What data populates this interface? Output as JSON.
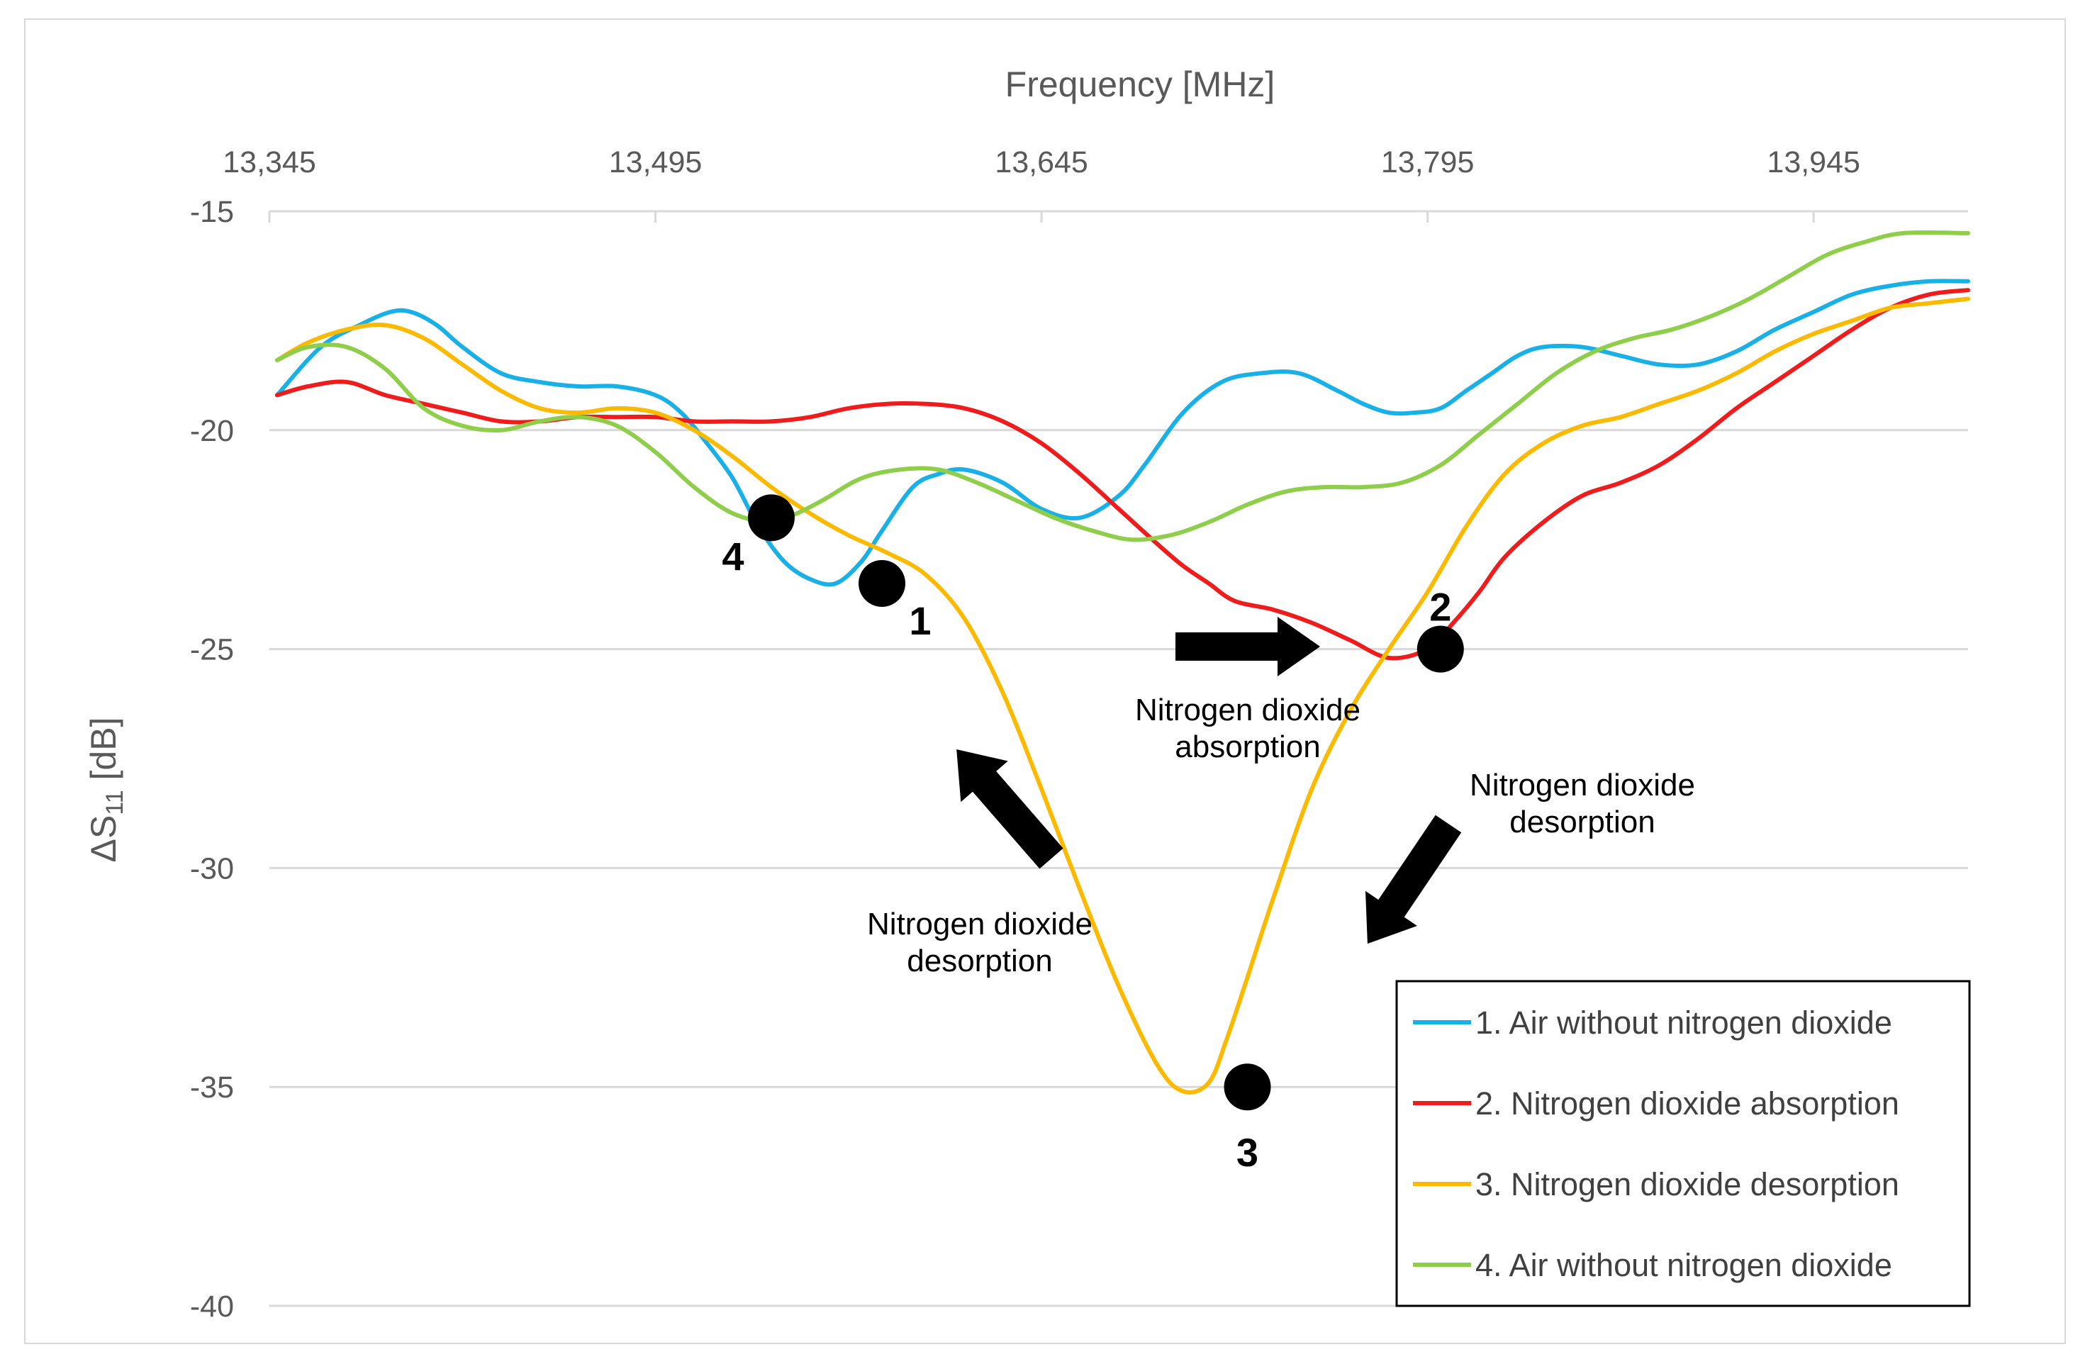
{
  "chart_data": {
    "type": "line",
    "xlabel": "Frequency [MHz]",
    "ylabel_main": "ΔS",
    "ylabel_sub": "11",
    "ylabel_unit": " [dB]",
    "x_axis_position": "top",
    "xlim": [
      13345,
      14005
    ],
    "ylim": [
      -40,
      -15
    ],
    "x_ticks": [
      13345,
      13495,
      13645,
      13795,
      13945
    ],
    "x_tick_labels": [
      "13,345",
      "13,495",
      "13,645",
      "13,795",
      "13,945"
    ],
    "y_ticks": [
      -15,
      -20,
      -25,
      -30,
      -35,
      -40
    ],
    "y_tick_labels": [
      "-15",
      "-20",
      "-25",
      "-30",
      "-35",
      "-40"
    ],
    "grid": true,
    "legend_position": "bottom-right",
    "series": [
      {
        "name": "1. Air without nitrogen dioxide",
        "color": "#19b0e8",
        "x": [
          13348,
          13365,
          13380,
          13392,
          13400,
          13410,
          13420,
          13435,
          13450,
          13465,
          13480,
          13495,
          13505,
          13515,
          13525,
          13535,
          13545,
          13555,
          13565,
          13575,
          13583,
          13595,
          13605,
          13615,
          13630,
          13645,
          13660,
          13675,
          13685,
          13700,
          13715,
          13730,
          13745,
          13760,
          13770,
          13780,
          13790,
          13800,
          13810,
          13820,
          13830,
          13840,
          13855,
          13870,
          13885,
          13900,
          13915,
          13930,
          13945,
          13960,
          13975,
          13990,
          14005
        ],
        "y": [
          -19.2,
          -18.1,
          -17.6,
          -17.3,
          -17.3,
          -17.6,
          -18.1,
          -18.7,
          -18.9,
          -19.0,
          -19.0,
          -19.2,
          -19.6,
          -20.3,
          -21.1,
          -22.2,
          -23.0,
          -23.4,
          -23.5,
          -23.0,
          -22.3,
          -21.3,
          -21.0,
          -20.9,
          -21.2,
          -21.8,
          -22.0,
          -21.5,
          -20.8,
          -19.6,
          -18.9,
          -18.7,
          -18.7,
          -19.1,
          -19.4,
          -19.6,
          -19.6,
          -19.5,
          -19.1,
          -18.7,
          -18.3,
          -18.1,
          -18.1,
          -18.3,
          -18.5,
          -18.5,
          -18.2,
          -17.7,
          -17.3,
          -16.9,
          -16.7,
          -16.6,
          -16.6
        ]
      },
      {
        "name": "2. Nitrogen dioxide absorption",
        "color": "#ee1c1c",
        "x": [
          13348,
          13360,
          13375,
          13390,
          13405,
          13420,
          13435,
          13450,
          13465,
          13480,
          13495,
          13510,
          13525,
          13540,
          13555,
          13570,
          13585,
          13600,
          13615,
          13630,
          13645,
          13660,
          13675,
          13690,
          13700,
          13710,
          13720,
          13735,
          13750,
          13765,
          13780,
          13795,
          13805,
          13815,
          13825,
          13840,
          13855,
          13870,
          13885,
          13900,
          13915,
          13930,
          13945,
          13960,
          13975,
          13990,
          14005
        ],
        "y": [
          -19.2,
          -19.0,
          -18.9,
          -19.2,
          -19.4,
          -19.6,
          -19.8,
          -19.8,
          -19.7,
          -19.7,
          -19.7,
          -19.8,
          -19.8,
          -19.8,
          -19.7,
          -19.5,
          -19.4,
          -19.4,
          -19.5,
          -19.8,
          -20.3,
          -21.0,
          -21.8,
          -22.6,
          -23.1,
          -23.5,
          -23.9,
          -24.1,
          -24.4,
          -24.8,
          -25.2,
          -25.0,
          -24.4,
          -23.7,
          -22.9,
          -22.1,
          -21.5,
          -21.2,
          -20.8,
          -20.2,
          -19.5,
          -18.9,
          -18.3,
          -17.7,
          -17.2,
          -16.9,
          -16.8
        ]
      },
      {
        "name": "3. Nitrogen dioxide desorption",
        "color": "#fbba00",
        "x": [
          13348,
          13360,
          13375,
          13390,
          13405,
          13420,
          13435,
          13450,
          13465,
          13480,
          13495,
          13510,
          13525,
          13540,
          13555,
          13570,
          13585,
          13600,
          13615,
          13630,
          13645,
          13660,
          13675,
          13690,
          13700,
          13710,
          13717,
          13725,
          13735,
          13750,
          13765,
          13780,
          13795,
          13810,
          13825,
          13840,
          13855,
          13870,
          13885,
          13900,
          13915,
          13930,
          13945,
          13960,
          13975,
          13990,
          14005
        ],
        "y": [
          -18.4,
          -18.0,
          -17.7,
          -17.6,
          -17.9,
          -18.5,
          -19.1,
          -19.5,
          -19.6,
          -19.5,
          -19.6,
          -20.0,
          -20.6,
          -21.3,
          -21.9,
          -22.4,
          -22.8,
          -23.3,
          -24.3,
          -26.0,
          -28.2,
          -30.5,
          -32.7,
          -34.5,
          -35.1,
          -34.9,
          -33.9,
          -32.5,
          -30.7,
          -28.2,
          -26.4,
          -25.0,
          -23.7,
          -22.2,
          -21.0,
          -20.3,
          -19.9,
          -19.7,
          -19.4,
          -19.1,
          -18.7,
          -18.2,
          -17.8,
          -17.5,
          -17.2,
          -17.1,
          -17.0
        ]
      },
      {
        "name": "4. Air without nitrogen dioxide",
        "color": "#8fce4b",
        "x": [
          13348,
          13360,
          13375,
          13390,
          13405,
          13420,
          13435,
          13450,
          13465,
          13480,
          13495,
          13510,
          13525,
          13540,
          13550,
          13560,
          13575,
          13590,
          13605,
          13620,
          13635,
          13650,
          13665,
          13680,
          13695,
          13710,
          13725,
          13740,
          13755,
          13770,
          13785,
          13800,
          13815,
          13830,
          13845,
          13860,
          13875,
          13890,
          13905,
          13920,
          13935,
          13950,
          13965,
          13980,
          14005
        ],
        "y": [
          -18.4,
          -18.1,
          -18.1,
          -18.6,
          -19.5,
          -19.9,
          -20.0,
          -19.8,
          -19.7,
          -19.9,
          -20.5,
          -21.3,
          -21.9,
          -22.1,
          -21.9,
          -21.6,
          -21.1,
          -20.9,
          -20.9,
          -21.2,
          -21.6,
          -22.0,
          -22.3,
          -22.5,
          -22.4,
          -22.1,
          -21.7,
          -21.4,
          -21.3,
          -21.3,
          -21.2,
          -20.8,
          -20.1,
          -19.4,
          -18.7,
          -18.2,
          -17.9,
          -17.7,
          -17.4,
          -17.0,
          -16.5,
          -16.0,
          -15.7,
          -15.5,
          -15.5
        ]
      }
    ],
    "markers": [
      {
        "label": "1",
        "x": 13583,
        "y": -23.5
      },
      {
        "label": "2",
        "x": 13800,
        "y": -25.0
      },
      {
        "label": "3",
        "x": 13725,
        "y": -35.0
      },
      {
        "label": "4",
        "x": 13540,
        "y": -22.0
      }
    ],
    "annotations": [
      {
        "line1": "Nitrogen dioxide",
        "line2": "absorption"
      },
      {
        "line1": "Nitrogen dioxide",
        "line2": "desorption"
      },
      {
        "line1": "Nitrogen dioxide",
        "line2": "desorption"
      }
    ]
  }
}
